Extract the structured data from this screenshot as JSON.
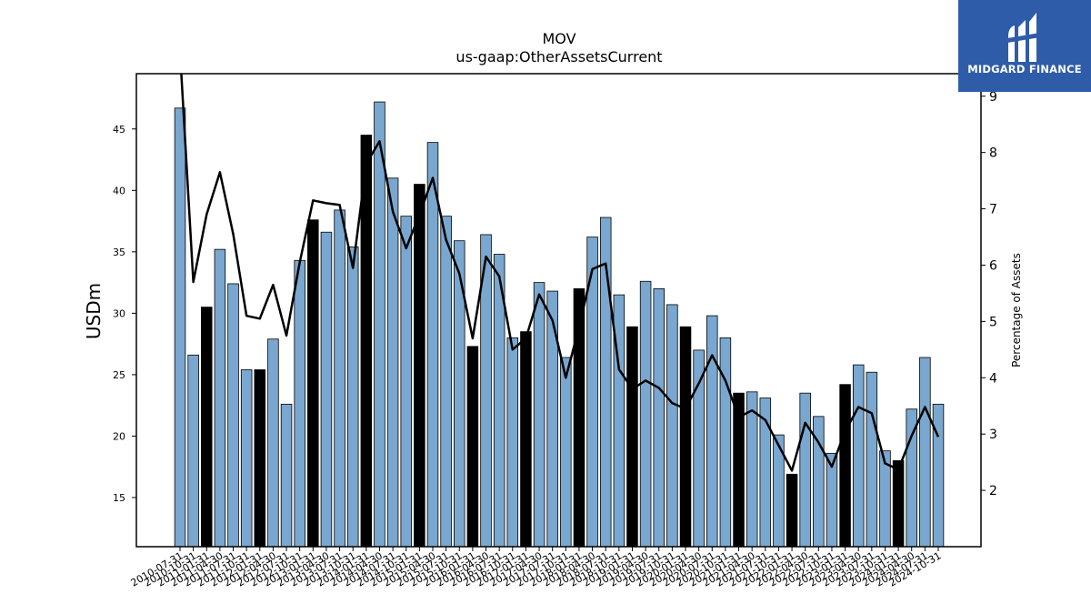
{
  "logo": {
    "text": "MIDGARD FINANCE",
    "background": "#2f5ca8"
  },
  "chart_data": {
    "type": "bar",
    "title": "MOV",
    "subtitle": "us-gaap:OtherAssetsCurrent",
    "ylabel": "USDm",
    "y2label": "Percentage of Assets",
    "ylim": [
      11,
      49.5
    ],
    "y2lim": [
      1.0,
      9.4
    ],
    "yticks": [
      15,
      20,
      25,
      30,
      35,
      40,
      45
    ],
    "y2ticks": [
      2,
      3,
      4,
      5,
      6,
      7,
      8,
      9
    ],
    "colors": {
      "bar": "#7aa7cf",
      "bar_highlight": "#000000",
      "line": "#000000"
    },
    "categories": [
      "2010-07-31",
      "2010-10-31",
      "2011-01-31",
      "2011-04-30",
      "2011-07-31",
      "2011-10-31",
      "2012-01-31",
      "2012-04-30",
      "2012-07-31",
      "2012-10-31",
      "2013-01-31",
      "2013-04-30",
      "2013-07-31",
      "2013-10-31",
      "2014-01-31",
      "2014-04-30",
      "2014-07-31",
      "2014-10-31",
      "2015-01-31",
      "2015-04-30",
      "2015-07-31",
      "2015-10-31",
      "2016-01-31",
      "2016-04-30",
      "2016-07-31",
      "2016-10-31",
      "2017-01-31",
      "2017-04-30",
      "2017-07-31",
      "2017-10-31",
      "2018-01-31",
      "2018-04-30",
      "2018-07-31",
      "2018-10-31",
      "2019-01-31",
      "2019-04-30",
      "2019-07-31",
      "2019-10-31",
      "2020-01-31",
      "2020-04-30",
      "2020-07-31",
      "2020-10-31",
      "2021-01-31",
      "2021-04-30",
      "2021-07-31",
      "2021-10-31",
      "2022-01-31",
      "2022-04-30",
      "2022-07-31",
      "2022-10-31",
      "2023-01-31",
      "2023-04-30",
      "2023-07-31",
      "2023-10-31",
      "2024-01-31",
      "2024-04-30",
      "2024-07-31",
      "2024-10-31"
    ],
    "series": [
      {
        "values": [
          46.7,
          26.6,
          30.5,
          35.2,
          32.4,
          25.4,
          25.4,
          27.9,
          22.6,
          34.3,
          37.6,
          36.6,
          38.4,
          35.4,
          44.5,
          47.2,
          41.0,
          37.9,
          40.5,
          43.9,
          37.9,
          35.9,
          27.3,
          36.4,
          34.8,
          28.0,
          28.5,
          32.5,
          31.8,
          26.4,
          32.0,
          36.2,
          37.8,
          31.5,
          28.9,
          32.6,
          32.0,
          30.7,
          28.9,
          27.0,
          29.8,
          28.0,
          23.5,
          23.6,
          23.1,
          20.1,
          16.9,
          23.5,
          21.6,
          18.6,
          24.2,
          25.8,
          25.2,
          18.8,
          18.0,
          22.2,
          26.4,
          22.6
        ],
        "highlight": [
          false,
          false,
          true,
          false,
          false,
          false,
          true,
          false,
          false,
          false,
          true,
          false,
          false,
          false,
          true,
          false,
          false,
          false,
          true,
          false,
          false,
          false,
          true,
          false,
          false,
          false,
          true,
          false,
          false,
          false,
          true,
          false,
          false,
          false,
          true,
          false,
          false,
          false,
          true,
          false,
          false,
          false,
          true,
          false,
          false,
          false,
          true,
          false,
          false,
          false,
          true,
          false,
          false,
          false,
          true,
          false,
          false,
          false
        ]
      },
      {
        "axis": "right",
        "type": "line",
        "values": [
          9.8,
          5.7,
          6.9,
          7.65,
          6.55,
          5.1,
          5.05,
          5.65,
          4.75,
          6.05,
          7.15,
          7.1,
          7.07,
          5.95,
          7.8,
          8.2,
          6.95,
          6.3,
          6.9,
          7.55,
          6.45,
          5.85,
          4.7,
          6.15,
          5.8,
          4.5,
          4.7,
          5.48,
          5.02,
          4.0,
          4.9,
          5.93,
          6.03,
          4.15,
          3.8,
          3.95,
          3.82,
          3.55,
          3.45,
          3.9,
          4.4,
          3.95,
          3.3,
          3.42,
          3.25,
          2.8,
          2.35,
          3.2,
          2.85,
          2.42,
          3.05,
          3.48,
          3.37,
          2.48,
          2.37,
          2.97,
          3.48,
          2.95
        ]
      }
    ],
    "grid": false,
    "legend": "none"
  }
}
